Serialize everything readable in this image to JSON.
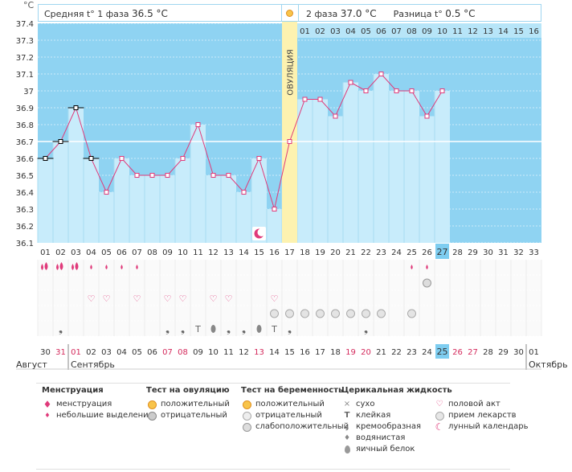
{
  "unit": "°C",
  "header": {
    "phase1_label": "Средняя t° 1 фаза",
    "phase1_value": "36.5 °C",
    "phase2_label": "2 фаза",
    "phase2_value": "37.0 °C",
    "diff_label": "Разница t°",
    "diff_value": "0.5 °C"
  },
  "ovulation_label": "ОВУЛЯЦИЯ",
  "colors": {
    "sky": "#8fd3f2",
    "bar": "#c8ecfb",
    "line": "#e03a7a",
    "ovulation": "#fdf2b0",
    "today": "#7ecdf0",
    "red_day": "#d42a5c"
  },
  "chart_data": {
    "type": "line",
    "y_ticks": [
      "37.4",
      "37.3",
      "37.2",
      "37.1",
      "37",
      "36.9",
      "36.8",
      "36.7",
      "36.6",
      "36.5",
      "36.4",
      "36.3",
      "36.2",
      "36.1"
    ],
    "ylim": [
      36.1,
      37.4
    ],
    "cycle_days": [
      "01",
      "02",
      "03",
      "04",
      "05",
      "06",
      "07",
      "08",
      "09",
      "10",
      "11",
      "12",
      "13",
      "14",
      "15",
      "16",
      "17",
      "18",
      "19",
      "20",
      "21",
      "22",
      "23",
      "24",
      "25",
      "26",
      "27",
      "28",
      "29",
      "30",
      "31",
      "32",
      "33"
    ],
    "temperatures": [
      36.6,
      36.7,
      36.9,
      36.6,
      36.4,
      36.6,
      36.5,
      36.5,
      36.5,
      36.6,
      36.8,
      36.5,
      36.5,
      36.4,
      36.6,
      36.3,
      36.7,
      36.95,
      36.95,
      36.85,
      37.05,
      37.0,
      37.1,
      37.0,
      37.0,
      36.85,
      37.0
    ],
    "excluded_days": [
      1,
      2,
      3,
      4
    ],
    "ovulation_day": 17,
    "today_index": 26,
    "post_ovulation_days": [
      "01",
      "02",
      "03",
      "04",
      "05",
      "06",
      "07",
      "08",
      "09",
      "10",
      "11",
      "12",
      "13",
      "14",
      "15",
      "16"
    ],
    "calendar_dates": [
      "30",
      "31",
      "01",
      "02",
      "03",
      "04",
      "05",
      "06",
      "07",
      "08",
      "09",
      "10",
      "11",
      "12",
      "13",
      "14",
      "15",
      "16",
      "17",
      "18",
      "19",
      "20",
      "21",
      "22",
      "23",
      "24",
      "25",
      "26",
      "27",
      "28",
      "29",
      "30",
      "01"
    ],
    "red_dates": [
      1,
      2,
      8,
      9,
      14,
      20,
      21,
      27,
      28
    ],
    "months": [
      "Август",
      "Сентябрь",
      "Октябрь"
    ],
    "menstruation": [
      "big",
      "big",
      "big",
      "small",
      "small",
      "small",
      "small",
      "",
      "",
      "",
      "",
      "",
      "",
      "",
      "",
      "",
      "",
      "",
      "",
      "",
      "",
      "",
      "",
      "",
      "small",
      "small",
      ""
    ],
    "ovulation_test_negative": [
      26
    ],
    "intercourse": [
      4,
      5,
      7,
      9,
      10,
      12,
      13,
      16
    ],
    "medication": [
      16,
      17,
      18,
      19,
      20,
      21,
      22,
      23,
      25
    ],
    "mucus": {
      "2": "creamy",
      "9": "creamy",
      "10": "creamy",
      "11": "sticky",
      "12": "watery",
      "13": "creamy",
      "14": "creamy",
      "15": "watery",
      "16": "sticky",
      "17": "creamy",
      "22": "creamy"
    },
    "moon_day": 15
  },
  "legend": {
    "menstruation": {
      "title": "Менструация",
      "items": [
        "менструация",
        "небольшие выделения"
      ]
    },
    "ovulation_test": {
      "title": "Тест на овуляцию",
      "items": [
        "положительный",
        "отрицательный"
      ]
    },
    "pregnancy_test": {
      "title": "Тест на беременность",
      "items": [
        "положительный",
        "отрицательный",
        "слабоположительный"
      ]
    },
    "mucus": {
      "title": "Церикальная жидкость",
      "items": [
        "сухо",
        "клейкая",
        "кремообразная",
        "водянистая",
        "яичный белок"
      ]
    },
    "other": {
      "items": [
        "половой акт",
        "прием лекарств",
        "лунный календарь"
      ]
    }
  }
}
